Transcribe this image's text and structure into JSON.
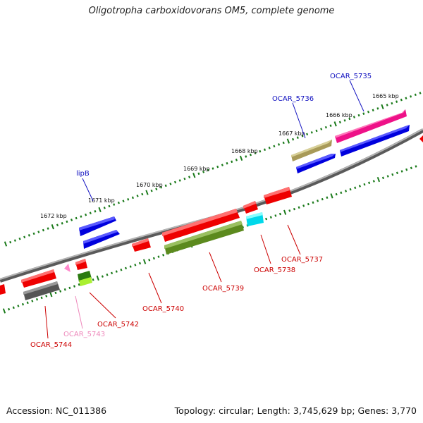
{
  "title": "Oligotropha carboxidovorans OM5, complete genome",
  "footer": {
    "accession": "Accession: NC_011386",
    "topology": "Topology: circular; Length: 3,745,629 bp; Genes: 3,770"
  },
  "kbp_labels": [
    "1665 kbp",
    "1666 kbp",
    "1667 kbp",
    "1668 kbp",
    "1669 kbp",
    "1670 kbp",
    "1671 kbp",
    "1672 kbp"
  ],
  "gene_labels": [
    {
      "text": "OCAR_5735",
      "color": "#1010c0"
    },
    {
      "text": "OCAR_5736",
      "color": "#1010c0"
    },
    {
      "text": "lipB",
      "color": "#1010c0"
    },
    {
      "text": "OCAR_5737",
      "color": "#cc0000"
    },
    {
      "text": "OCAR_5738",
      "color": "#cc0000"
    },
    {
      "text": "OCAR_5739",
      "color": "#cc0000"
    },
    {
      "text": "OCAR_5740",
      "color": "#cc0000"
    },
    {
      "text": "OCAR_5742",
      "color": "#cc0000"
    },
    {
      "text": "OCAR_5743",
      "color": "#ee88bb"
    },
    {
      "text": "OCAR_5744",
      "color": "#cc0000"
    }
  ],
  "colors": {
    "backbone": "#8a8a8a",
    "tick": "#1a7a1a",
    "red": "#ee0000",
    "blue": "#0000ee",
    "magenta": "#ee1188",
    "olive": "#5c8a1e",
    "khaki": "#b0a860",
    "cyan": "#00e0f0",
    "gray": "#666666",
    "pink": "#ff88cc",
    "lime": "#88dd22"
  }
}
